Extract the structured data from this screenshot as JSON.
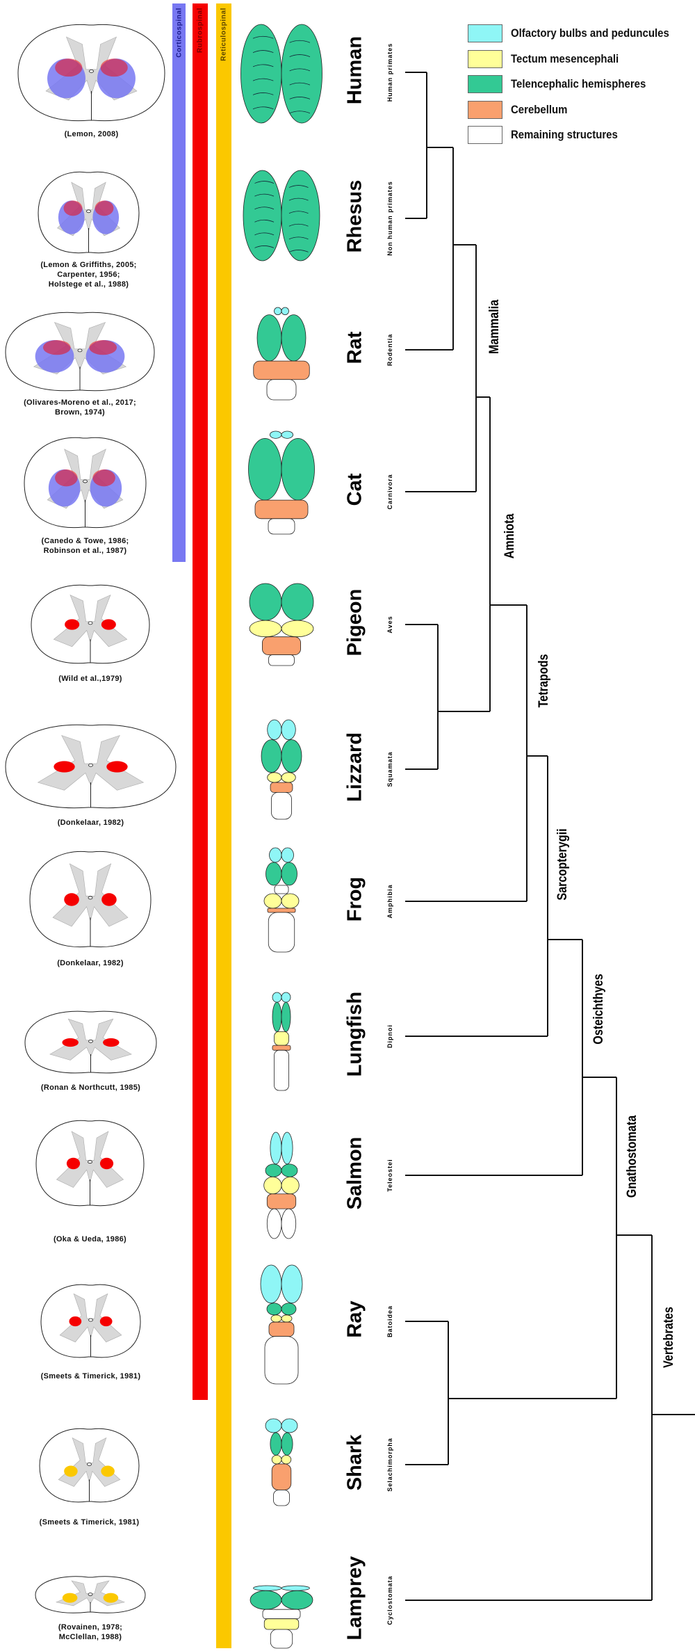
{
  "legend": [
    {
      "label": "Olfactory bulbs and peduncules",
      "color": "#8ff6f6"
    },
    {
      "label": "Tectum mesencephali",
      "color": "#ffff99"
    },
    {
      "label": "Telencephalic hemispheres",
      "color": "#33c994"
    },
    {
      "label": "Cerebellum",
      "color": "#f9a06e"
    },
    {
      "label": "Remaining structures",
      "color": "#ffffff"
    }
  ],
  "tracts": [
    {
      "label": "Corticospinal",
      "color": "#7878f2",
      "text_color": "#1a1a8a",
      "present_in": [
        "Human",
        "Rhesus",
        "Rat",
        "Cat"
      ]
    },
    {
      "label": "Rubrospinal",
      "color": "#f50000",
      "text_color": "#7a0000",
      "present_in": [
        "Human",
        "Rhesus",
        "Rat",
        "Cat",
        "Pigeon",
        "Lizzard",
        "Frog",
        "Lungfish",
        "Salmon",
        "Ray"
      ]
    },
    {
      "label": "Reticulospinal",
      "color": "#fbc800",
      "text_color": "#5a4400",
      "present_in": [
        "Human",
        "Rhesus",
        "Rat",
        "Cat",
        "Pigeon",
        "Lizzard",
        "Frog",
        "Lungfish",
        "Salmon",
        "Ray",
        "Shark",
        "Lamprey"
      ]
    }
  ],
  "species": [
    {
      "name": "Human",
      "group": "Human primates",
      "citation": [
        "(Lemon, 2008)"
      ],
      "cord_tracts": [
        "corticospinal",
        "rubrospinal"
      ]
    },
    {
      "name": "Rhesus",
      "group": "Non human primates",
      "citation": [
        "(Lemon & Griffiths, 2005;",
        "Carpenter, 1956;",
        "Holstege et al., 1988)"
      ],
      "cord_tracts": [
        "corticospinal",
        "rubrospinal"
      ]
    },
    {
      "name": "Rat",
      "group": "Rodentia",
      "citation": [
        "(Olivares-Moreno et al., 2017;",
        "Brown, 1974)"
      ],
      "cord_tracts": [
        "corticospinal",
        "rubrospinal"
      ]
    },
    {
      "name": "Cat",
      "group": "Carnivora",
      "citation": [
        "(Canedo & Towe, 1986;",
        "Robinson et al., 1987)"
      ],
      "cord_tracts": [
        "corticospinal",
        "rubrospinal"
      ]
    },
    {
      "name": "Pigeon",
      "group": "Aves",
      "citation": [
        "(Wild et al.,1979)"
      ],
      "cord_tracts": [
        "rubrospinal"
      ]
    },
    {
      "name": "Lizzard",
      "group": "Squamata",
      "citation": [
        "(Donkelaar, 1982)"
      ],
      "cord_tracts": [
        "rubrospinal"
      ]
    },
    {
      "name": "Frog",
      "group": "Amphibia",
      "citation": [
        "(Donkelaar, 1982)"
      ],
      "cord_tracts": [
        "rubrospinal"
      ]
    },
    {
      "name": "Lungfish",
      "group": "Dipnoi",
      "citation": [
        "(Ronan & Northcutt, 1985)"
      ],
      "cord_tracts": [
        "rubrospinal"
      ]
    },
    {
      "name": "Salmon",
      "group": "Teleostei",
      "citation": [
        "(Oka & Ueda, 1986)"
      ],
      "cord_tracts": [
        "rubrospinal"
      ]
    },
    {
      "name": "Ray",
      "group": "Batoidea",
      "citation": [
        "(Smeets & Timerick, 1981)"
      ],
      "cord_tracts": [
        "rubrospinal"
      ]
    },
    {
      "name": "Shark",
      "group": "Selachimorpha",
      "citation": [
        "(Smeets & Timerick, 1981)"
      ],
      "cord_tracts": [
        "reticulospinal"
      ]
    },
    {
      "name": "Lamprey",
      "group": "Cyclostomata",
      "citation": [
        "(Rovainen, 1978;",
        "McClellan, 1988)"
      ],
      "cord_tracts": [
        "reticulospinal"
      ]
    }
  ],
  "clades": [
    "Mammalia",
    "Amniota",
    "Tetrapods",
    "Sarcopterygii",
    "Osteichthyes",
    "Gnathostomata",
    "Vertebrates"
  ]
}
